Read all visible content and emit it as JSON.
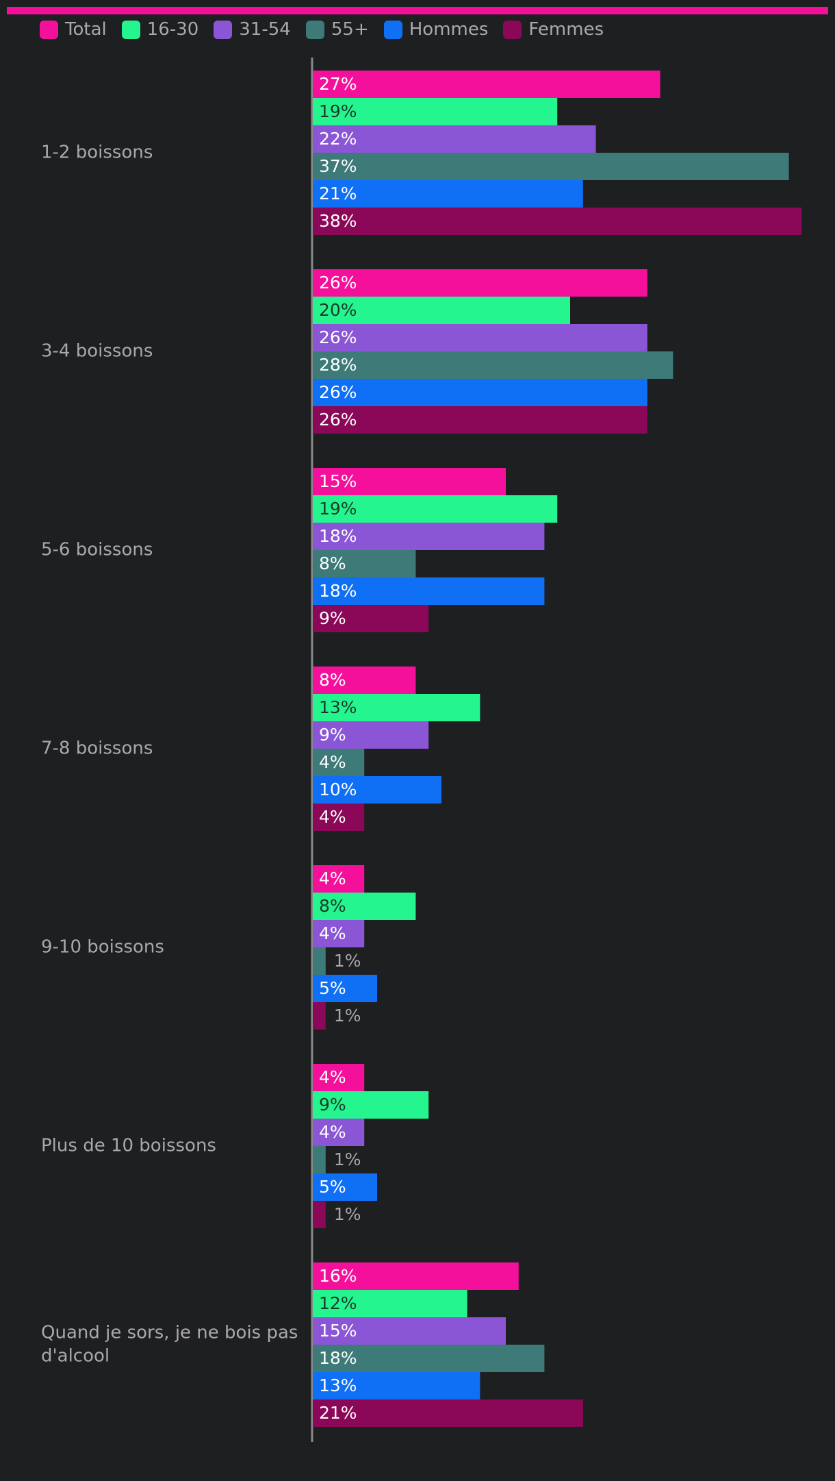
{
  "chart_data": {
    "type": "bar",
    "orientation": "horizontal",
    "categories": [
      [
        "1-2 boissons"
      ],
      [
        "3-4 boissons"
      ],
      [
        "5-6 boissons"
      ],
      [
        "7-8 boissons"
      ],
      [
        "9-10 boissons"
      ],
      [
        "Plus de 10 boissons"
      ],
      [
        "Quand je sors, je ne bois pas",
        "d'alcool"
      ]
    ],
    "series": [
      {
        "name": "Total",
        "color": "#f5109b",
        "values": [
          27,
          26,
          15,
          8,
          4,
          4,
          16
        ],
        "labels": [
          "27%",
          "26%",
          "15%",
          "8%",
          "4%",
          "4%",
          "16%"
        ]
      },
      {
        "name": "16-30",
        "color": "#25f58e",
        "values": [
          19,
          20,
          19,
          13,
          8,
          9,
          12
        ],
        "labels": [
          "19%",
          "20%",
          "19%",
          "13%",
          "8%",
          "9%",
          "12%"
        ]
      },
      {
        "name": "31-54",
        "color": "#8a56d6",
        "values": [
          22,
          26,
          18,
          9,
          4,
          4,
          15
        ],
        "labels": [
          "22%",
          "26%",
          "18%",
          "9%",
          "4%",
          "4%",
          "15%"
        ]
      },
      {
        "name": "55+",
        "color": "#3d7a78",
        "values": [
          37,
          28,
          8,
          4,
          1,
          1,
          18
        ],
        "labels": [
          "37%",
          "28%",
          "8%",
          "4%",
          "1%",
          "1%",
          "18%"
        ]
      },
      {
        "name": "Hommes",
        "color": "#0f6ff5",
        "values": [
          21,
          26,
          18,
          10,
          5,
          5,
          13
        ],
        "labels": [
          "21%",
          "26%",
          "18%",
          "10%",
          "5%",
          "5%",
          "13%"
        ]
      },
      {
        "name": "Femmes",
        "color": "#8b0757",
        "values": [
          38,
          26,
          9,
          4,
          1,
          1,
          21
        ],
        "labels": [
          "38%",
          "26%",
          "9%",
          "4%",
          "1%",
          "1%",
          "21%"
        ]
      }
    ],
    "value_unit": "%",
    "xlim": [
      0,
      40
    ],
    "legend_position": "top-left",
    "grid": false
  },
  "theme": {
    "background": "#1e1f21",
    "text": "#a9a9a9",
    "axis": "#8a8a8a",
    "accent": "#f5109b",
    "label_on_bar_light": "#ffffff",
    "label_on_bar_dark": "#1b3a2a"
  }
}
